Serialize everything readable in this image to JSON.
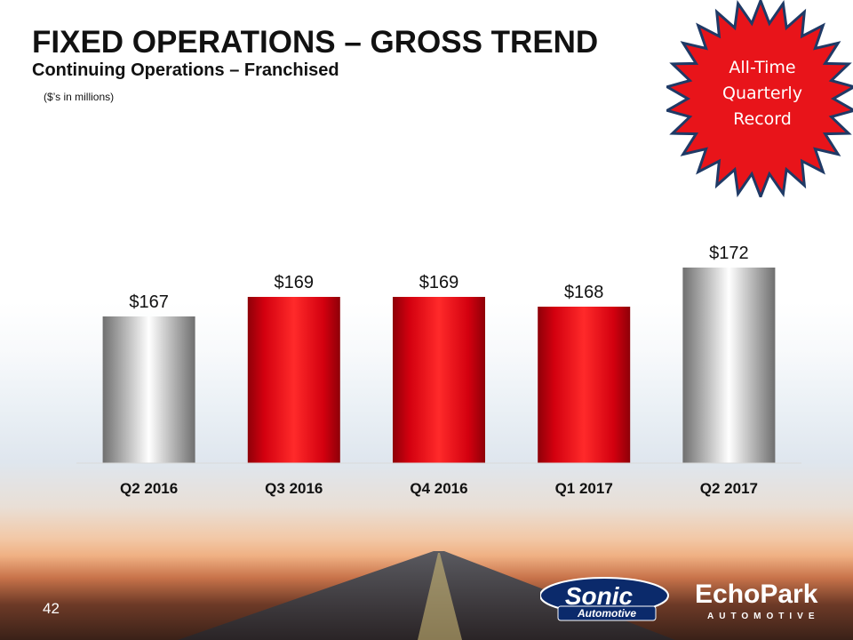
{
  "slide": {
    "title": "FIXED OPERATIONS – GROSS TREND",
    "subtitle": "Continuing Operations – Franchised",
    "units_note": "($’s in millions)",
    "page_number": "42"
  },
  "callout": {
    "lines": [
      "All-Time",
      "Quarterly",
      "Record"
    ],
    "fill_color": "#e8141a",
    "border_color": "#1f3a66"
  },
  "chart_data": {
    "type": "bar",
    "categories": [
      "Q2 2016",
      "Q3 2016",
      "Q4 2016",
      "Q1 2017",
      "Q2 2017"
    ],
    "values": [
      167,
      169,
      169,
      168,
      172
    ],
    "data_labels": [
      "$167",
      "$169",
      "$169",
      "$168",
      "$172"
    ],
    "bar_styles": [
      "silver",
      "red",
      "red",
      "red",
      "silver"
    ],
    "title": "",
    "xlabel": "",
    "ylabel": "",
    "grid": false,
    "legend": "none",
    "colors": {
      "red": "#e50012",
      "silver": "#c8c8c8"
    }
  },
  "logos": {
    "sonic": {
      "wordmark": "Sonic",
      "sub": "Automotive",
      "icon": "sonic-automotive-logo"
    },
    "echopark": {
      "wordmark": "EchoPark",
      "sub": "AUTOMOTIVE",
      "icon": "echopark-logo"
    }
  }
}
